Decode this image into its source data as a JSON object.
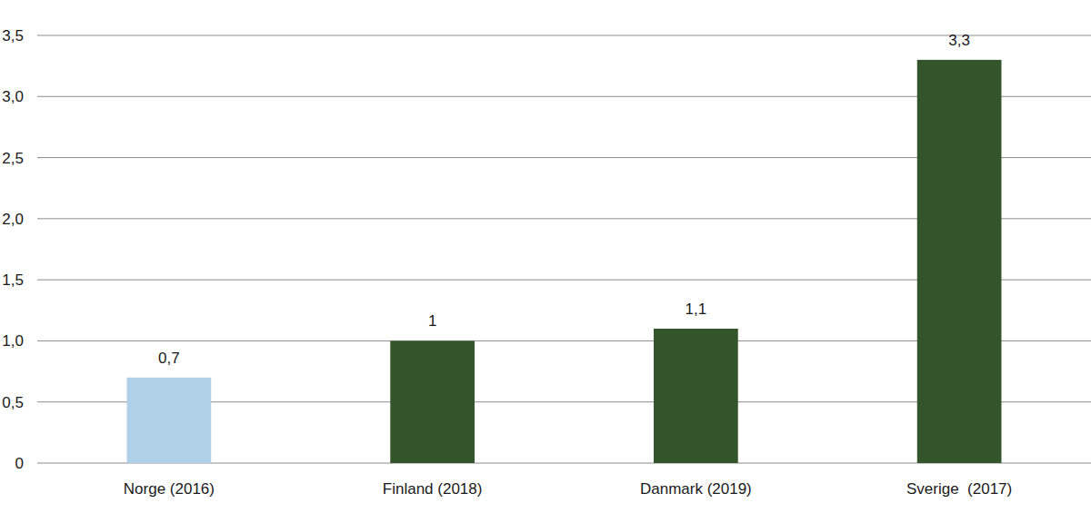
{
  "chart_data": {
    "type": "bar",
    "categories": [
      "Norge (2016)",
      "Finland (2018)",
      "Danmark (2019)",
      "Sverige  (2017)"
    ],
    "values": [
      0.7,
      1,
      1.1,
      3.3
    ],
    "value_labels": [
      "0,7",
      "1",
      "1,1",
      "3,3"
    ],
    "colors": [
      "#b0d0e8",
      "#34552b",
      "#34552b",
      "#34552b"
    ],
    "ylim": [
      0,
      3.5
    ],
    "yticks": [
      0,
      {
        "value": 0.5,
        "label": "0,5"
      },
      {
        "value": 1.0,
        "label": "1,0"
      },
      {
        "value": 1.5,
        "label": "1,5"
      },
      {
        "value": 2.0,
        "label": "2,0"
      },
      {
        "value": 2.5,
        "label": "2,5"
      },
      {
        "value": 3.0,
        "label": "3,0"
      },
      {
        "value": 3.5,
        "label": "3,5"
      }
    ],
    "grid": true,
    "data_labels": true
  }
}
